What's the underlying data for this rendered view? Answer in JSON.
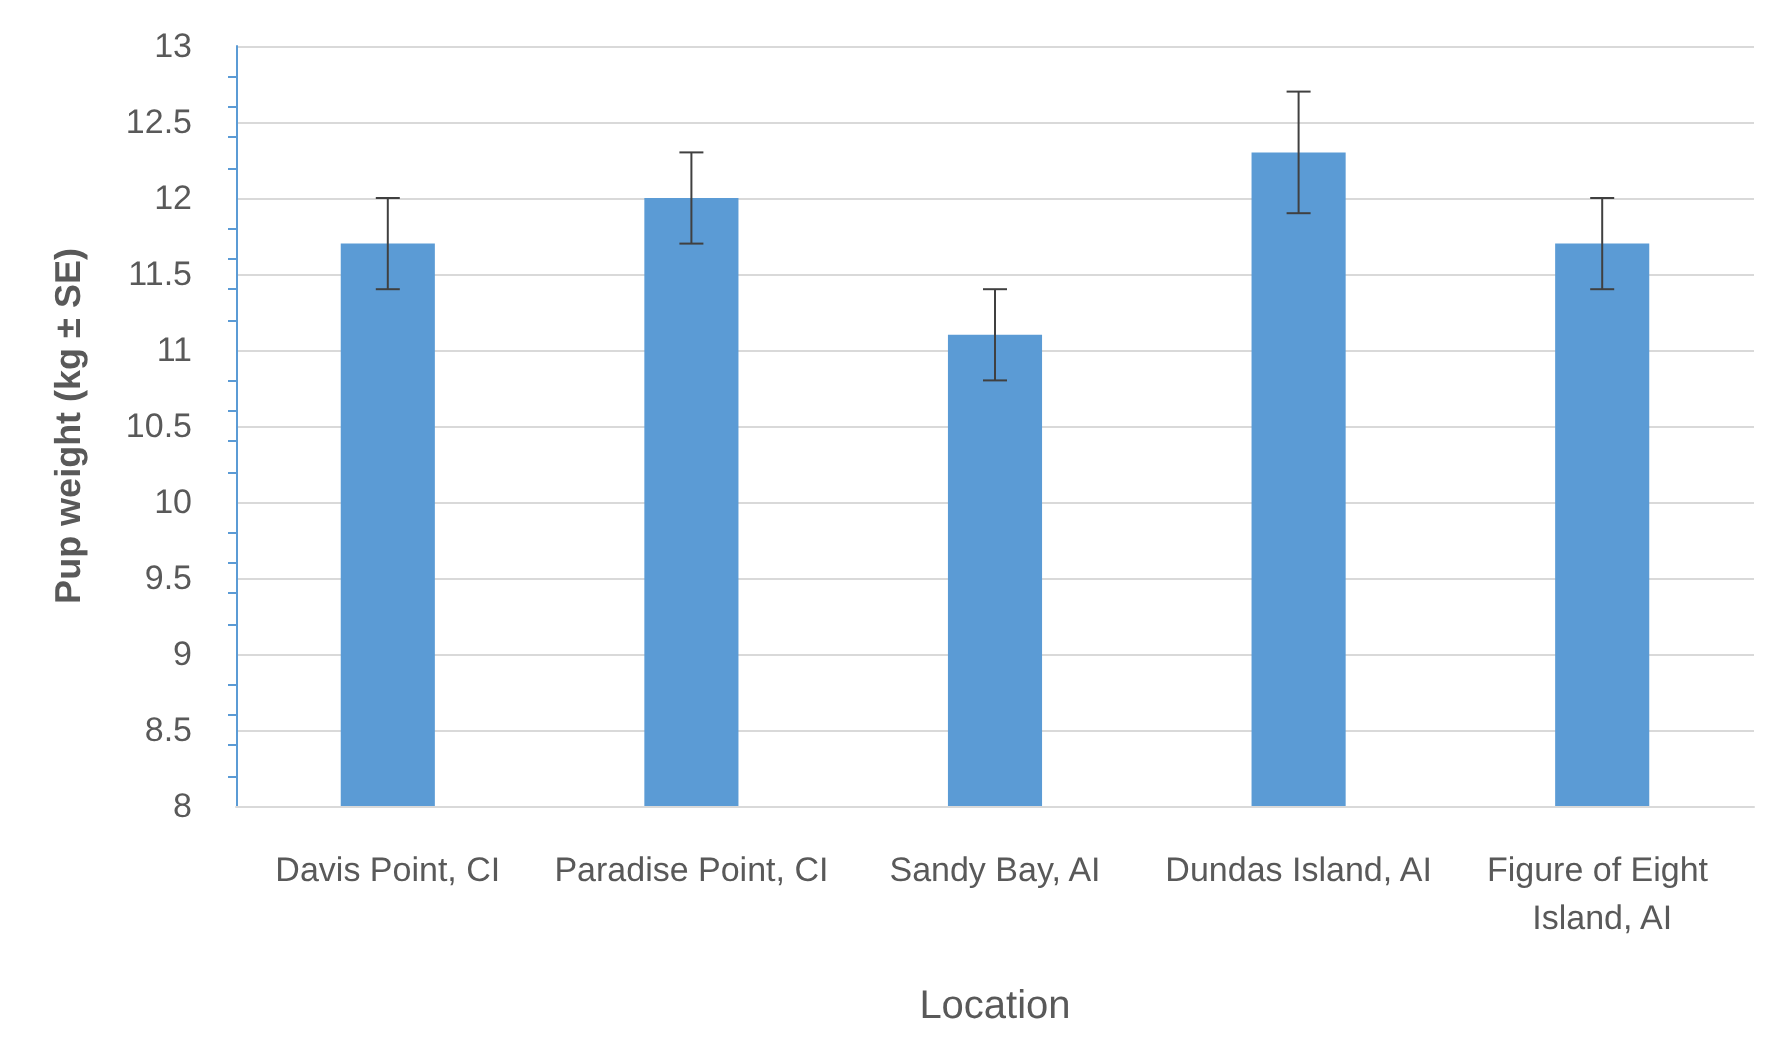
{
  "chart_data": {
    "type": "bar",
    "xlabel": "Location",
    "ylabel": "Pup weight (kg ± SE)",
    "categories": [
      "Davis Point, CI",
      "Paradise Point, CI",
      "Sandy Bay, AI",
      "Dundas Island, AI",
      "Figure of Eight Island, AI"
    ],
    "values": [
      11.7,
      12.0,
      11.1,
      12.3,
      11.7
    ],
    "errors": [
      0.3,
      0.3,
      0.3,
      0.4,
      0.3
    ],
    "color": "#5b9bd5",
    "ylim": [
      8,
      13
    ],
    "yticks": [
      8,
      8.5,
      9,
      9.5,
      10,
      10.5,
      11,
      11.5,
      12,
      12.5,
      13
    ],
    "grid": "y"
  }
}
